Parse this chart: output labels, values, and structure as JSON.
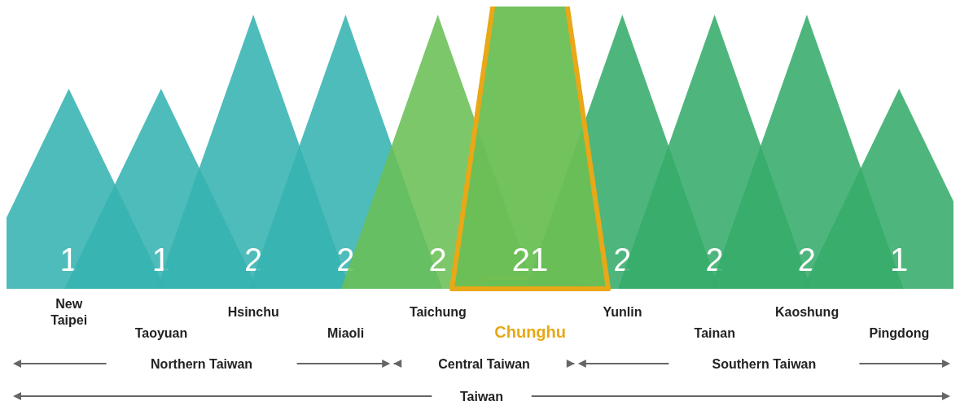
{
  "chart_data": {
    "type": "other",
    "categories": [
      "New Taipei",
      "Taoyuan",
      "Hsinchu",
      "Miaoli",
      "Taichung",
      "Chunghu",
      "Yunlin",
      "Tainan",
      "Kaoshung",
      "Pingdong"
    ],
    "values": [
      1,
      1,
      2,
      2,
      2,
      21,
      2,
      2,
      2,
      1
    ],
    "colors": [
      "#35b3b0",
      "#35b3b0",
      "#35b3b0",
      "#35b3b0",
      "#6abf55",
      "#6abf55",
      "#35ac6a",
      "#35ac6a",
      "#35ac6a",
      "#35ac6a"
    ],
    "data_labels": true,
    "annotations": [
      "Northern Taiwan",
      "Central Taiwan",
      "Southern Taiwan",
      "Taiwan"
    ]
  }
}
